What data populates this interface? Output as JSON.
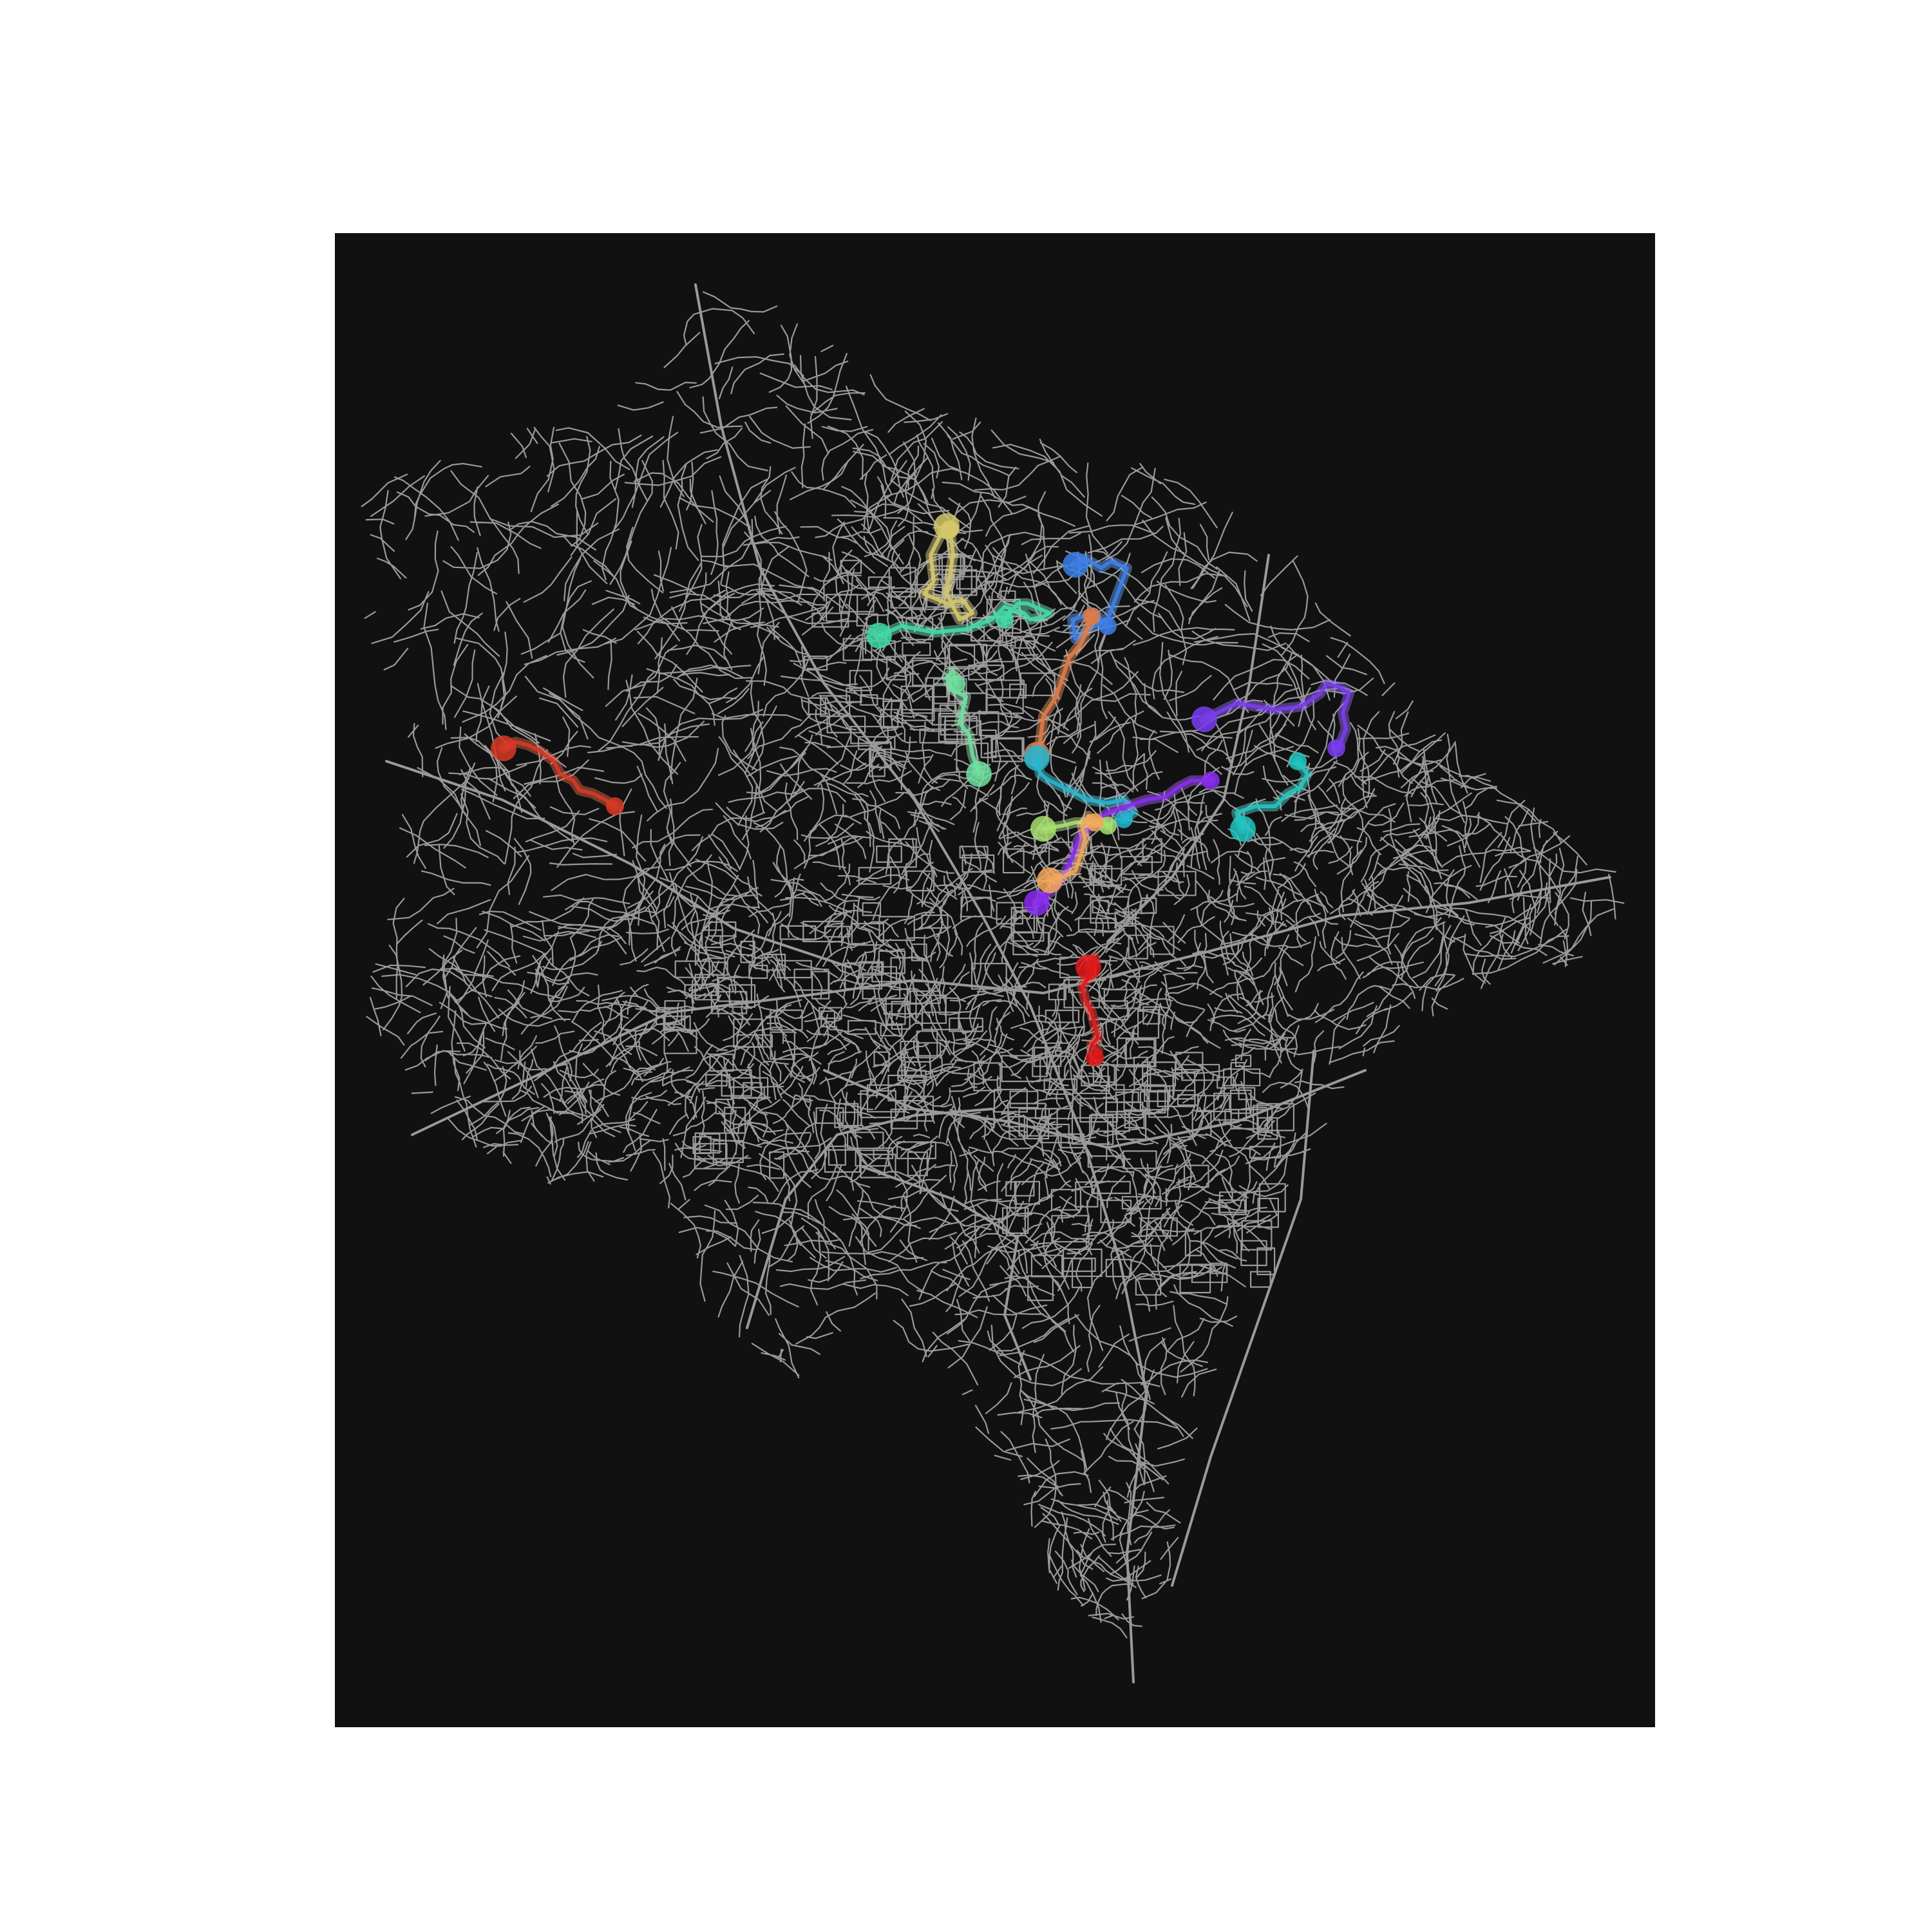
{
  "map": {
    "background_color": "#111111",
    "road_color": "#9a9a9a",
    "routes": [
      {
        "id": "route-1",
        "color": "#d4c76a",
        "glow": "#e8df9a"
      },
      {
        "id": "route-2",
        "color": "#3fd9a8",
        "glow": "#7ff0c8"
      },
      {
        "id": "route-3",
        "color": "#6fe0a0",
        "glow": "#a8f0c4"
      },
      {
        "id": "route-4",
        "color": "#3c7fe8",
        "glow": "#6ea8ff"
      },
      {
        "id": "route-5",
        "color": "#e07a45",
        "glow": "#f5a070"
      },
      {
        "id": "route-6",
        "color": "#7a3cf0",
        "glow": "#9d6cff"
      },
      {
        "id": "route-7",
        "color": "#23b6d0",
        "glow": "#5ed6e8"
      },
      {
        "id": "route-8",
        "color": "#20c6c0",
        "glow": "#5fe3df"
      },
      {
        "id": "route-9",
        "color": "#8a2cf0",
        "glow": "#ad63ff"
      },
      {
        "id": "route-10",
        "color": "#a6e070",
        "glow": "#c9f29f"
      },
      {
        "id": "route-11",
        "color": "#f2a85a",
        "glow": "#ffc98c"
      },
      {
        "id": "route-12",
        "color": "#d83a24",
        "glow": "#f06a50"
      },
      {
        "id": "route-13",
        "color": "#e01818",
        "glow": "#ff4a4a"
      }
    ]
  }
}
